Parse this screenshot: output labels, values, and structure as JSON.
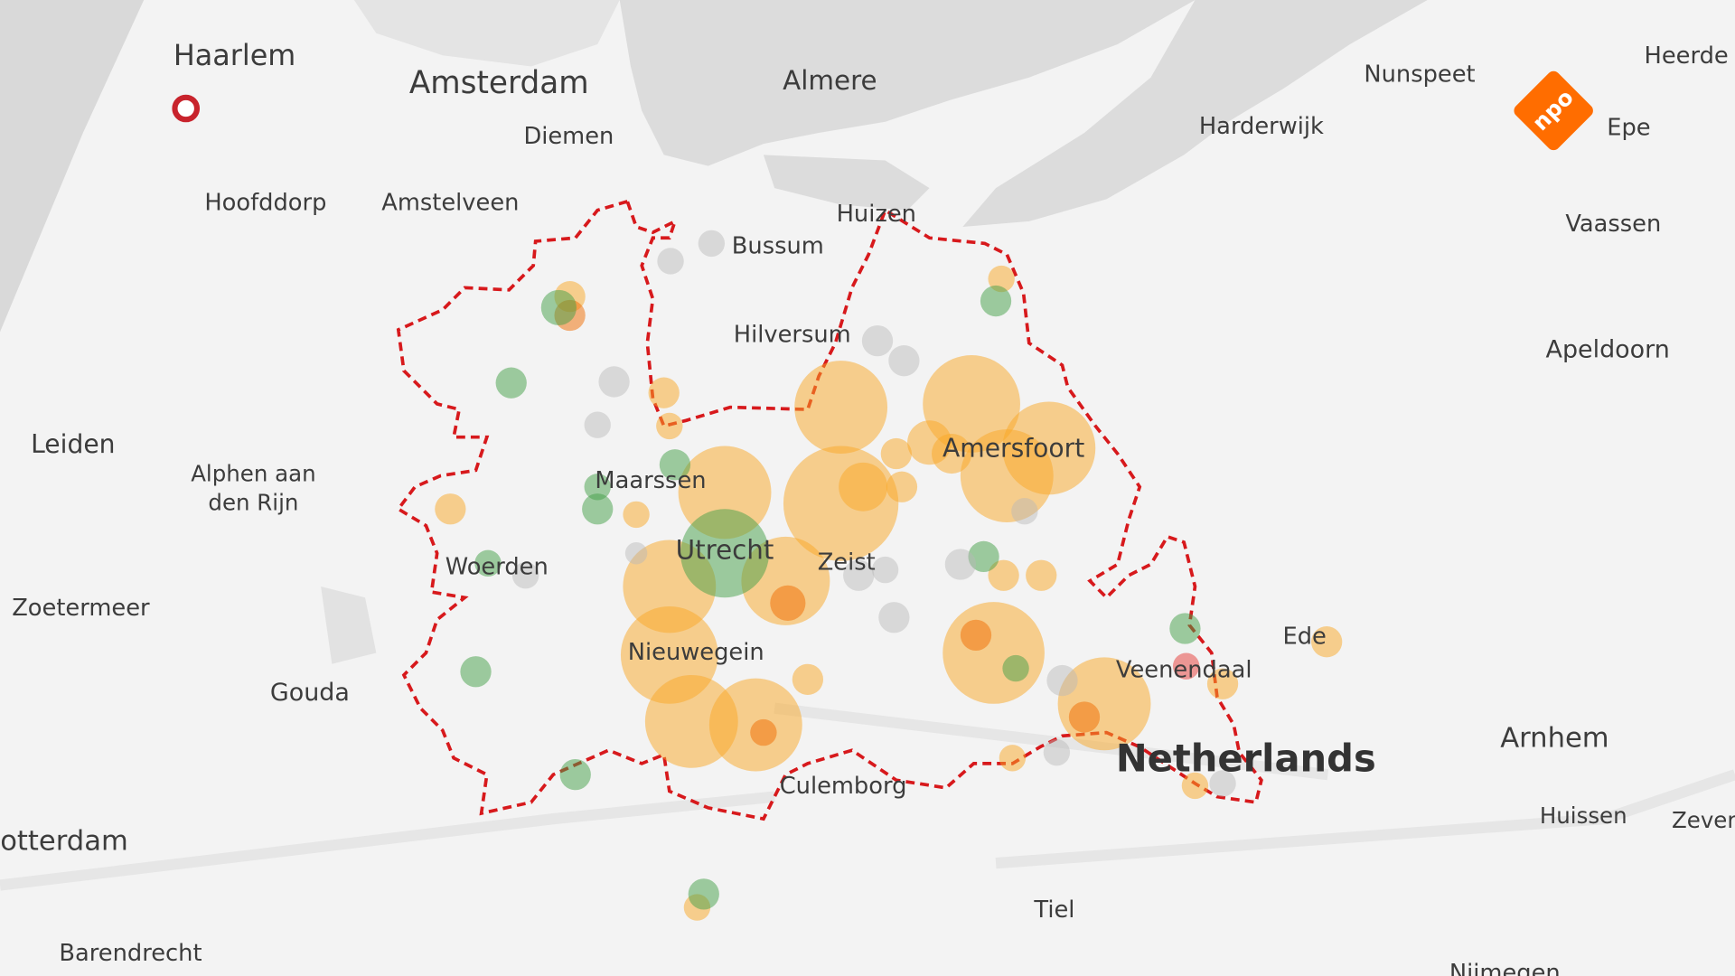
{
  "map": {
    "labels": [
      "Haarlem",
      "Amsterdam",
      "Almere",
      "Diemen",
      "Nunspeet",
      "Heerde",
      "Harderwijk",
      "Epe",
      "Hoofddorp",
      "Amstelveen",
      "Huizen",
      "Bussum",
      "Vaassen",
      "Hilversum",
      "Apeldoorn",
      "Leiden",
      "Alphen aan",
      "den Rijn",
      "Maarssen",
      "Amersfoort",
      "Woerden",
      "Zeist",
      "Utrecht",
      "Zoetermeer",
      "Ede",
      "Nieuwegein",
      "Veenendaal",
      "Gouda",
      "Arnhem",
      "otterdam",
      "Culemborg",
      "Huissen",
      "Zever",
      "Tiel",
      "Barendrecht",
      "Nijmegen"
    ],
    "country_label": "Netherlands",
    "logo": "npo"
  }
}
